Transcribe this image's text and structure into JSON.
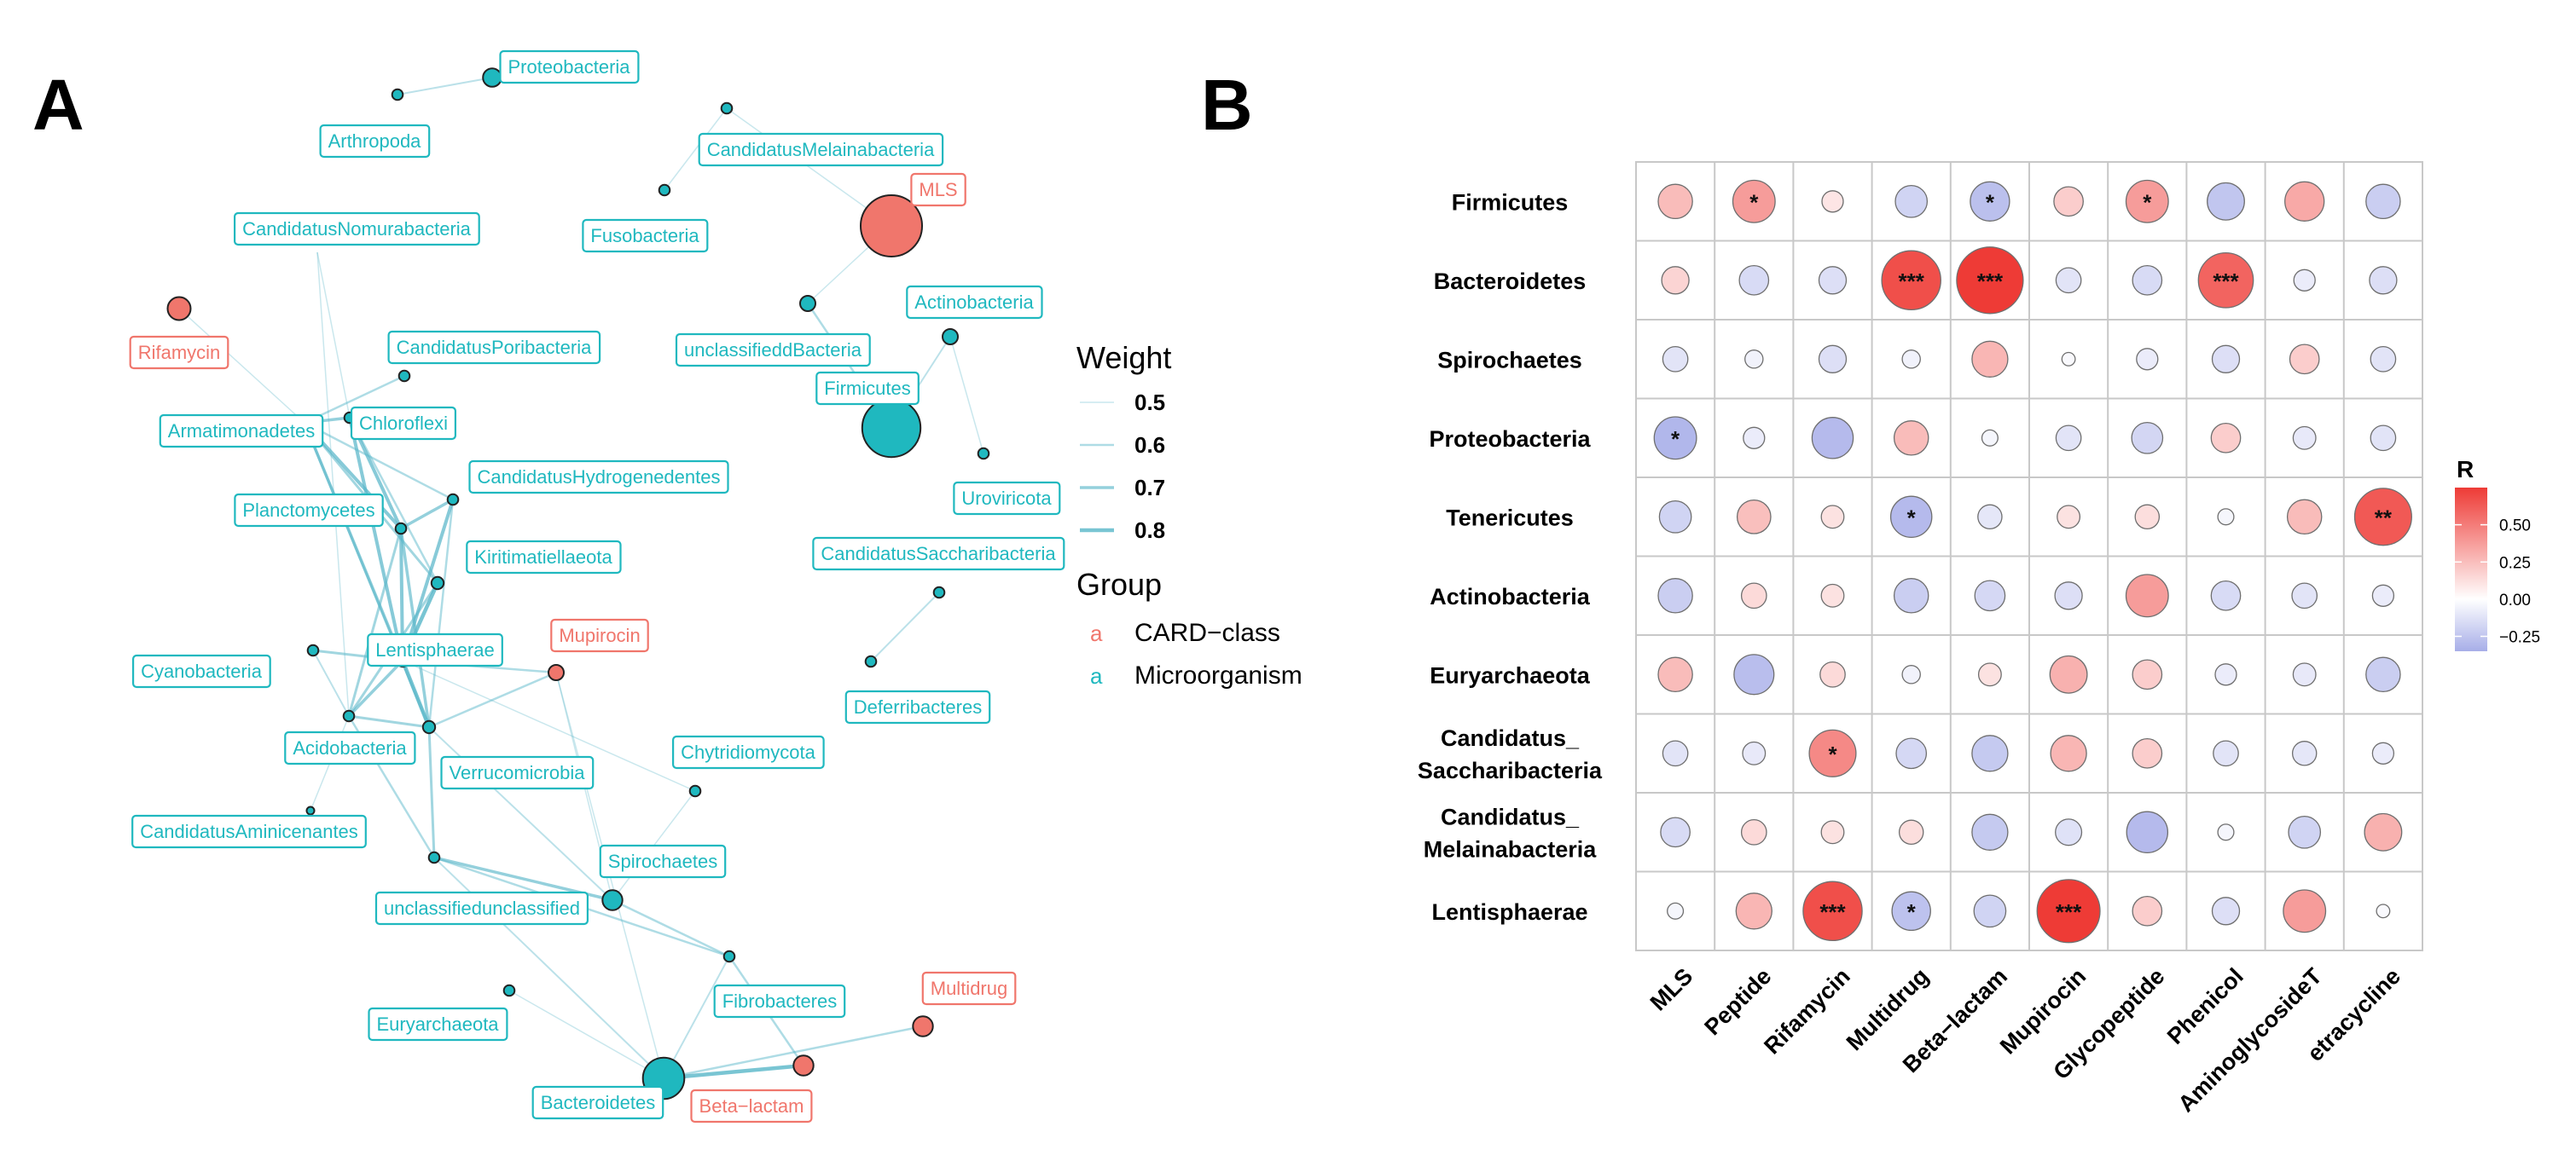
{
  "panel_labels": {
    "a": "A",
    "b": "B"
  },
  "colors": {
    "microorganism": "#1fb8bf",
    "card_class": "#f0766c",
    "edge": "#5ab7c9",
    "grid": "#c8c8c8",
    "positive": "#ee3b36",
    "negative": "#a7aee8",
    "neutral": "#ffffff"
  },
  "network": {
    "legend": {
      "weight_title": "Weight",
      "weights": [
        "0.5",
        "0.6",
        "0.7",
        "0.8"
      ],
      "group_title": "Group",
      "groups": [
        {
          "key": "a",
          "label": "CARD−class",
          "type": "card"
        },
        {
          "key": "a",
          "label": "Microorganism",
          "type": "micro"
        }
      ]
    },
    "nodes": [
      {
        "id": "Proteobacteria",
        "type": "micro",
        "size": 1.2
      },
      {
        "id": "Arthropoda",
        "type": "micro",
        "size": 0.7
      },
      {
        "id": "CandidatusMelainabacteria",
        "type": "micro",
        "size": 0.7
      },
      {
        "id": "MLS",
        "type": "card",
        "size": 4.0
      },
      {
        "id": "Fusobacteria",
        "type": "micro",
        "size": 0.7
      },
      {
        "id": "CandidatusNomurabacteria",
        "type": "micro",
        "size": 0
      },
      {
        "id": "Rifamycin",
        "type": "card",
        "size": 1.5
      },
      {
        "id": "unclassifieddBacteria",
        "type": "micro",
        "size": 1.0
      },
      {
        "id": "Actinobacteria",
        "type": "micro",
        "size": 1.0
      },
      {
        "id": "CandidatusPoribacteria",
        "type": "micro",
        "size": 0.7
      },
      {
        "id": "Firmicutes",
        "type": "micro",
        "size": 3.8
      },
      {
        "id": "Armatimonadetes",
        "type": "micro",
        "size": 0.7
      },
      {
        "id": "Chloroflexi",
        "type": "micro",
        "size": 0.7
      },
      {
        "id": "CandidatusHydrogenedentes",
        "type": "micro",
        "size": 0.7
      },
      {
        "id": "Uroviricota",
        "type": "micro",
        "size": 0.7
      },
      {
        "id": "Planctomycetes",
        "type": "micro",
        "size": 0.7
      },
      {
        "id": "Kiritimatiellaeota",
        "type": "micro",
        "size": 0.8
      },
      {
        "id": "CandidatusSaccharibacteria",
        "type": "micro",
        "size": 0.7
      },
      {
        "id": "Mupirocin",
        "type": "card",
        "size": 1.0
      },
      {
        "id": "Lentisphaerae",
        "type": "micro",
        "size": 0.8
      },
      {
        "id": "Cyanobacteria",
        "type": "micro",
        "size": 0.7
      },
      {
        "id": "Deferribacteres",
        "type": "micro",
        "size": 0.7
      },
      {
        "id": "Acidobacteria",
        "type": "micro",
        "size": 0.7
      },
      {
        "id": "Verrucomicrobia",
        "type": "micro",
        "size": 0.8
      },
      {
        "id": "Chytridiomycota",
        "type": "micro",
        "size": 0.7
      },
      {
        "id": "CandidatusAminicenantes",
        "type": "micro",
        "size": 0.5
      },
      {
        "id": "Spirochaetes",
        "type": "micro",
        "size": 1.3
      },
      {
        "id": "unclassifiedunclassified",
        "type": "micro",
        "size": 0.7
      },
      {
        "id": "Fibrobacteres",
        "type": "micro",
        "size": 0.7
      },
      {
        "id": "Multidrug",
        "type": "card",
        "size": 1.3
      },
      {
        "id": "Euryarchaeota",
        "type": "micro",
        "size": 0.7
      },
      {
        "id": "Bacteroidetes",
        "type": "micro",
        "size": 2.7
      },
      {
        "id": "Beta−lactam",
        "type": "card",
        "size": 1.3
      }
    ],
    "edges": [
      [
        "Arthropoda",
        "Proteobacteria",
        0.55
      ],
      [
        "CandidatusMelainabacteria",
        "Fusobacteria",
        0.5
      ],
      [
        "CandidatusMelainabacteria",
        "MLS",
        0.5
      ],
      [
        "MLS",
        "unclassifieddBacteria",
        0.5
      ],
      [
        "Actinobacteria",
        "Firmicutes",
        0.55
      ],
      [
        "Actinobacteria",
        "Uroviricota",
        0.5
      ],
      [
        "Firmicutes",
        "unclassifieddBacteria",
        0.6
      ],
      [
        "Rifamycin",
        "Armatimonadetes",
        0.5
      ],
      [
        "CandidatusNomurabacteria",
        "Acidobacteria",
        0.5
      ],
      [
        "CandidatusPoribacteria",
        "Armatimonadetes",
        0.6
      ],
      [
        "Chloroflexi",
        "Armatimonadetes",
        0.7
      ],
      [
        "Chloroflexi",
        "Planctomycetes",
        0.75
      ],
      [
        "Chloroflexi",
        "Lentisphaerae",
        0.75
      ],
      [
        "Chloroflexi",
        "Kiritimatiellaeota",
        0.6
      ],
      [
        "Armatimonadetes",
        "Planctomycetes",
        0.75
      ],
      [
        "Armatimonadetes",
        "Lentisphaerae",
        0.7
      ],
      [
        "Armatimonadetes",
        "Verrucomicrobia",
        0.65
      ],
      [
        "Armatimonadetes",
        "CandidatusHydrogenedentes",
        0.6
      ],
      [
        "Armatimonadetes",
        "Kiritimatiellaeota",
        0.65
      ],
      [
        "CandidatusHydrogenedentes",
        "Planctomycetes",
        0.7
      ],
      [
        "CandidatusHydrogenedentes",
        "Lentisphaerae",
        0.75
      ],
      [
        "CandidatusHydrogenedentes",
        "Verrucomicrobia",
        0.6
      ],
      [
        "Kiritimatiellaeota",
        "Lentisphaerae",
        0.8
      ],
      [
        "Kiritimatiellaeota",
        "Acidobacteria",
        0.65
      ],
      [
        "Planctomycetes",
        "Lentisphaerae",
        0.75
      ],
      [
        "Planctomycetes",
        "Acidobacteria",
        0.65
      ],
      [
        "Planctomycetes",
        "Verrucomicrobia",
        0.7
      ],
      [
        "Lentisphaerae",
        "Verrucomicrobia",
        0.8
      ],
      [
        "Lentisphaerae",
        "Acidobacteria",
        0.7
      ],
      [
        "Lentisphaerae",
        "Cyanobacteria",
        0.65
      ],
      [
        "Verrucomicrobia",
        "Mupirocin",
        0.6
      ],
      [
        "Verrucomicrobia",
        "Acidobacteria",
        0.65
      ],
      [
        "Verrucomicrobia",
        "unclassifiedunclassified",
        0.65
      ],
      [
        "Verrucomicrobia",
        "Spirochaetes",
        0.55
      ],
      [
        "Mupirocin",
        "Lentisphaerae",
        0.6
      ],
      [
        "Mupirocin",
        "Spirochaetes",
        0.5
      ],
      [
        "Mupirocin",
        "Bacteroidetes",
        0.5
      ],
      [
        "Acidobacteria",
        "CandidatusAminicenantes",
        0.5
      ],
      [
        "Acidobacteria",
        "unclassifiedunclassified",
        0.6
      ],
      [
        "Cyanobacteria",
        "Acidobacteria",
        0.55
      ],
      [
        "CandidatusSaccharibacteria",
        "Deferribacteres",
        0.55
      ],
      [
        "Chytridiomycota",
        "Spirochaetes",
        0.5
      ],
      [
        "Chytridiomycota",
        "Lentisphaerae",
        0.5
      ],
      [
        "Spirochaetes",
        "unclassifiedunclassified",
        0.7
      ],
      [
        "Spirochaetes",
        "Fibrobacteres",
        0.6
      ],
      [
        "unclassifiedunclassified",
        "Fibrobacteres",
        0.6
      ],
      [
        "unclassifiedunclassified",
        "Bacteroidetes",
        0.55
      ],
      [
        "Fibrobacteres",
        "Beta−lactam",
        0.6
      ],
      [
        "Fibrobacteres",
        "Bacteroidetes",
        0.55
      ],
      [
        "Euryarchaeota",
        "Bacteroidetes",
        0.5
      ],
      [
        "Bacteroidetes",
        "Beta−lactam",
        0.8
      ],
      [
        "Bacteroidetes",
        "Multidrug",
        0.6
      ],
      [
        "Chloroflexi",
        "CandidatusNomurabacteria",
        0.5
      ]
    ]
  },
  "chart_data": {
    "type": "heatmap",
    "title": "",
    "rows": [
      "Firmicutes",
      "Bacteroidetes",
      "Spirochaetes",
      "Proteobacteria",
      "Tenericutes",
      "Actinobacteria",
      "Euryarchaeota",
      "Candidatus_\nSaccharibacteria",
      "Candidatus_\nMelainabacteria",
      "Lentisphaerae"
    ],
    "columns": [
      "MLS",
      "Peptide",
      "Rifamycin",
      "Multidrug",
      "Beta−lactam",
      "Mupirocin",
      "Glycopeptide",
      "Phenicol",
      "AminoglycosideT",
      "etracycline"
    ],
    "values": [
      [
        0.18,
        0.3,
        0.05,
        -0.15,
        -0.25,
        0.12,
        0.3,
        -0.22,
        0.25,
        -0.18
      ],
      [
        0.1,
        -0.12,
        -0.1,
        0.65,
        0.85,
        -0.08,
        -0.12,
        0.55,
        -0.05,
        -0.1
      ],
      [
        -0.08,
        -0.03,
        -0.1,
        -0.03,
        0.2,
        -0.01,
        -0.05,
        -0.1,
        0.12,
        -0.08
      ],
      [
        -0.3,
        -0.05,
        -0.28,
        0.18,
        -0.02,
        -0.08,
        -0.14,
        0.12,
        -0.06,
        -0.08
      ],
      [
        -0.15,
        0.17,
        0.06,
        -0.28,
        -0.07,
        0.06,
        0.07,
        -0.02,
        0.18,
        0.6
      ],
      [
        -0.18,
        0.08,
        0.06,
        -0.18,
        -0.13,
        -0.1,
        0.3,
        -0.12,
        -0.08,
        -0.05
      ],
      [
        0.18,
        -0.26,
        0.08,
        -0.03,
        0.06,
        0.22,
        0.12,
        -0.05,
        -0.06,
        -0.18
      ],
      [
        -0.08,
        -0.06,
        0.38,
        -0.13,
        -0.2,
        0.2,
        0.12,
        -0.08,
        -0.07,
        -0.05
      ],
      [
        -0.12,
        0.08,
        0.06,
        0.07,
        -0.2,
        -0.09,
        -0.28,
        -0.02,
        -0.15,
        0.22
      ],
      [
        -0.02,
        0.2,
        0.65,
        -0.24,
        -0.15,
        0.75,
        0.12,
        -0.1,
        0.3,
        -0.01
      ]
    ],
    "significance": [
      [
        "",
        "*",
        "",
        "",
        "*",
        "",
        "*",
        "",
        "",
        ""
      ],
      [
        "",
        "",
        "",
        "***",
        "***",
        "",
        "",
        "***",
        "",
        ""
      ],
      [
        "",
        "",
        "",
        "",
        "",
        "",
        "",
        "",
        "",
        ""
      ],
      [
        "*",
        "",
        "",
        "",
        "",
        "",
        "",
        "",
        "",
        ""
      ],
      [
        "",
        "",
        "",
        "*",
        "",
        "",
        "",
        "",
        "",
        "**"
      ],
      [
        "",
        "",
        "",
        "",
        "",
        "",
        "",
        "",
        "",
        ""
      ],
      [
        "",
        "",
        "",
        "",
        "",
        "",
        "",
        "",
        "",
        ""
      ],
      [
        "",
        "",
        "*",
        "",
        "",
        "",
        "",
        "",
        "",
        ""
      ],
      [
        "",
        "",
        "",
        "",
        "",
        "",
        "",
        "",
        "",
        ""
      ],
      [
        "",
        "",
        "***",
        "*",
        "",
        "***",
        "",
        "",
        "",
        ""
      ]
    ],
    "colorbar": {
      "title": "R",
      "range": [
        -0.35,
        0.75
      ],
      "ticks": [
        0.5,
        0.25,
        0.0,
        -0.25
      ],
      "tick_labels": [
        "0.50",
        "0.25",
        "0.00",
        "−0.25"
      ]
    }
  }
}
